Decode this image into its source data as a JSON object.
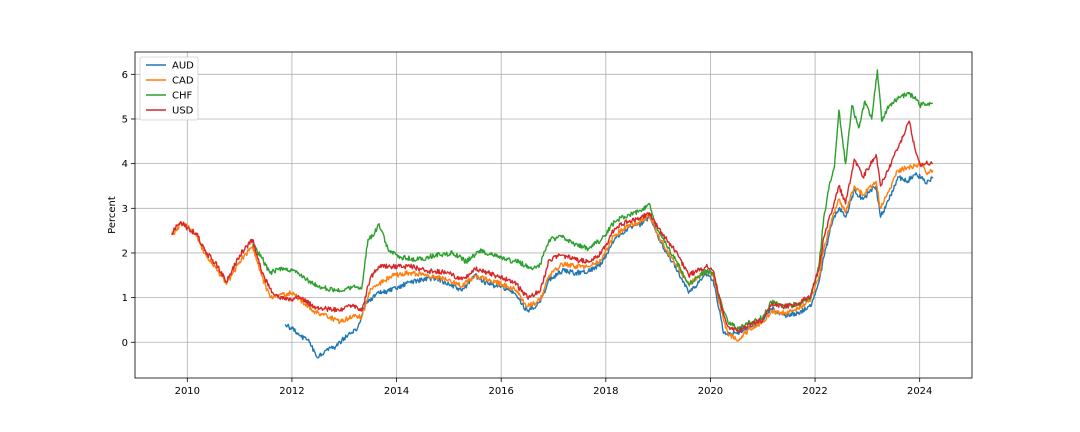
{
  "chart_data": {
    "type": "line",
    "title": "",
    "xlabel": "",
    "ylabel": "Percent",
    "xlim": [
      "2009-01-01",
      "2025-01-01"
    ],
    "ylim": [
      -0.8,
      6.5
    ],
    "grid": true,
    "legend_position": "top-left",
    "xticks": [
      "2010",
      "2012",
      "2014",
      "2016",
      "2018",
      "2020",
      "2022",
      "2024"
    ],
    "yticks": [
      0,
      1,
      2,
      3,
      4,
      5,
      6
    ],
    "series": [
      {
        "name": "AUD",
        "color": "#1f77b4",
        "points": [
          [
            "2011-11-15",
            0.4
          ],
          [
            "2012-01-01",
            0.3
          ],
          [
            "2012-03-01",
            0.15
          ],
          [
            "2012-05-01",
            0.0
          ],
          [
            "2012-07-01",
            -0.35
          ],
          [
            "2012-09-01",
            -0.15
          ],
          [
            "2012-11-01",
            -0.1
          ],
          [
            "2013-01-01",
            0.1
          ],
          [
            "2013-04-01",
            0.3
          ],
          [
            "2013-06-01",
            0.9
          ],
          [
            "2013-09-01",
            1.1
          ],
          [
            "2014-01-01",
            1.2
          ],
          [
            "2014-04-01",
            1.35
          ],
          [
            "2014-07-01",
            1.4
          ],
          [
            "2014-10-01",
            1.45
          ],
          [
            "2015-01-01",
            1.3
          ],
          [
            "2015-04-01",
            1.15
          ],
          [
            "2015-07-01",
            1.5
          ],
          [
            "2015-10-01",
            1.3
          ],
          [
            "2016-01-01",
            1.25
          ],
          [
            "2016-04-01",
            1.1
          ],
          [
            "2016-07-01",
            0.7
          ],
          [
            "2016-10-01",
            0.9
          ],
          [
            "2016-12-01",
            1.4
          ],
          [
            "2017-03-01",
            1.6
          ],
          [
            "2017-06-01",
            1.55
          ],
          [
            "2017-09-01",
            1.6
          ],
          [
            "2017-12-01",
            1.75
          ],
          [
            "2018-03-01",
            2.3
          ],
          [
            "2018-06-01",
            2.55
          ],
          [
            "2018-09-01",
            2.65
          ],
          [
            "2018-11-01",
            2.8
          ],
          [
            "2019-01-01",
            2.35
          ],
          [
            "2019-03-01",
            2.0
          ],
          [
            "2019-05-01",
            1.7
          ],
          [
            "2019-08-01",
            1.1
          ],
          [
            "2019-10-01",
            1.3
          ],
          [
            "2019-12-01",
            1.55
          ],
          [
            "2020-01-20",
            1.4
          ],
          [
            "2020-03-15",
            0.5
          ],
          [
            "2020-04-01",
            0.2
          ],
          [
            "2020-07-01",
            0.2
          ],
          [
            "2020-10-01",
            0.35
          ],
          [
            "2021-01-01",
            0.5
          ],
          [
            "2021-03-01",
            0.75
          ],
          [
            "2021-06-01",
            0.6
          ],
          [
            "2021-09-01",
            0.65
          ],
          [
            "2021-12-01",
            0.8
          ],
          [
            "2022-02-01",
            1.4
          ],
          [
            "2022-03-01",
            1.9
          ],
          [
            "2022-05-01",
            2.7
          ],
          [
            "2022-06-15",
            3.0
          ],
          [
            "2022-08-01",
            2.8
          ],
          [
            "2022-10-01",
            3.4
          ],
          [
            "2022-12-01",
            3.2
          ],
          [
            "2023-03-01",
            3.5
          ],
          [
            "2023-04-01",
            2.8
          ],
          [
            "2023-06-01",
            3.2
          ],
          [
            "2023-08-01",
            3.7
          ],
          [
            "2023-10-01",
            3.6
          ],
          [
            "2023-12-01",
            3.75
          ],
          [
            "2024-01-15",
            3.7
          ],
          [
            "2024-02-15",
            3.55
          ],
          [
            "2024-04-01",
            3.7
          ]
        ]
      },
      {
        "name": "CAD",
        "color": "#ff7f0e",
        "points": [
          [
            "2009-09-15",
            2.4
          ],
          [
            "2009-11-15",
            2.65
          ],
          [
            "2010-01-01",
            2.6
          ],
          [
            "2010-03-01",
            2.4
          ],
          [
            "2010-05-01",
            2.0
          ],
          [
            "2010-08-01",
            1.6
          ],
          [
            "2010-10-01",
            1.3
          ],
          [
            "2011-01-01",
            1.8
          ],
          [
            "2011-04-01",
            2.15
          ],
          [
            "2011-06-01",
            1.5
          ],
          [
            "2011-08-01",
            1.0
          ],
          [
            "2011-10-01",
            1.05
          ],
          [
            "2012-01-01",
            1.1
          ],
          [
            "2012-03-01",
            0.95
          ],
          [
            "2012-06-01",
            0.7
          ],
          [
            "2012-09-01",
            0.6
          ],
          [
            "2012-12-01",
            0.45
          ],
          [
            "2013-03-01",
            0.6
          ],
          [
            "2013-05-01",
            0.55
          ],
          [
            "2013-07-01",
            1.2
          ],
          [
            "2013-09-01",
            1.3
          ],
          [
            "2013-12-01",
            1.5
          ],
          [
            "2014-04-01",
            1.55
          ],
          [
            "2014-08-01",
            1.5
          ],
          [
            "2015-01-01",
            1.4
          ],
          [
            "2015-04-01",
            1.25
          ],
          [
            "2015-07-01",
            1.5
          ],
          [
            "2015-10-01",
            1.4
          ],
          [
            "2016-01-01",
            1.3
          ],
          [
            "2016-04-01",
            1.2
          ],
          [
            "2016-07-01",
            0.8
          ],
          [
            "2016-10-01",
            0.95
          ],
          [
            "2016-12-01",
            1.5
          ],
          [
            "2017-03-01",
            1.75
          ],
          [
            "2017-06-01",
            1.7
          ],
          [
            "2017-09-01",
            1.7
          ],
          [
            "2017-12-01",
            1.85
          ],
          [
            "2018-03-01",
            2.4
          ],
          [
            "2018-06-01",
            2.6
          ],
          [
            "2018-09-01",
            2.7
          ],
          [
            "2018-11-01",
            2.85
          ],
          [
            "2019-01-01",
            2.4
          ],
          [
            "2019-03-01",
            2.05
          ],
          [
            "2019-05-01",
            1.75
          ],
          [
            "2019-08-01",
            1.3
          ],
          [
            "2019-10-01",
            1.45
          ],
          [
            "2019-12-01",
            1.6
          ],
          [
            "2020-01-20",
            1.5
          ],
          [
            "2020-03-15",
            0.7
          ],
          [
            "2020-05-01",
            0.2
          ],
          [
            "2020-07-15",
            0.05
          ],
          [
            "2020-10-01",
            0.3
          ],
          [
            "2021-01-01",
            0.45
          ],
          [
            "2021-03-01",
            0.7
          ],
          [
            "2021-06-01",
            0.65
          ],
          [
            "2021-09-01",
            0.75
          ],
          [
            "2021-12-01",
            0.95
          ],
          [
            "2022-02-01",
            1.5
          ],
          [
            "2022-03-01",
            2.1
          ],
          [
            "2022-05-01",
            2.8
          ],
          [
            "2022-06-15",
            3.2
          ],
          [
            "2022-08-01",
            2.9
          ],
          [
            "2022-10-01",
            3.5
          ],
          [
            "2022-12-01",
            3.3
          ],
          [
            "2023-03-01",
            3.6
          ],
          [
            "2023-04-01",
            3.0
          ],
          [
            "2023-06-01",
            3.4
          ],
          [
            "2023-08-01",
            3.85
          ],
          [
            "2023-10-01",
            3.9
          ],
          [
            "2023-12-01",
            3.95
          ],
          [
            "2024-01-15",
            4.0
          ],
          [
            "2024-02-15",
            3.8
          ],
          [
            "2024-04-01",
            3.85
          ]
        ]
      },
      {
        "name": "CHF",
        "color": "#2ca02c",
        "points": [
          [
            "2011-04-01",
            2.2
          ],
          [
            "2011-06-01",
            1.9
          ],
          [
            "2011-08-01",
            1.55
          ],
          [
            "2011-10-01",
            1.65
          ],
          [
            "2012-01-01",
            1.6
          ],
          [
            "2012-03-01",
            1.5
          ],
          [
            "2012-06-01",
            1.3
          ],
          [
            "2012-09-01",
            1.2
          ],
          [
            "2012-12-01",
            1.15
          ],
          [
            "2013-03-01",
            1.25
          ],
          [
            "2013-05-01",
            1.2
          ],
          [
            "2013-06-15",
            2.3
          ],
          [
            "2013-08-01",
            2.45
          ],
          [
            "2013-09-01",
            2.65
          ],
          [
            "2013-11-01",
            2.1
          ],
          [
            "2014-02-01",
            1.9
          ],
          [
            "2014-06-01",
            1.85
          ],
          [
            "2014-10-01",
            1.95
          ],
          [
            "2015-02-01",
            2.0
          ],
          [
            "2015-05-01",
            1.8
          ],
          [
            "2015-08-01",
            2.05
          ],
          [
            "2015-11-01",
            1.95
          ],
          [
            "2016-02-01",
            1.85
          ],
          [
            "2016-05-01",
            1.8
          ],
          [
            "2016-08-01",
            1.65
          ],
          [
            "2016-10-01",
            1.75
          ],
          [
            "2016-12-01",
            2.3
          ],
          [
            "2017-03-01",
            2.35
          ],
          [
            "2017-06-01",
            2.2
          ],
          [
            "2017-09-01",
            2.1
          ],
          [
            "2017-12-01",
            2.3
          ],
          [
            "2018-03-01",
            2.7
          ],
          [
            "2018-06-01",
            2.85
          ],
          [
            "2018-09-01",
            2.95
          ],
          [
            "2018-11-01",
            3.1
          ],
          [
            "2019-01-01",
            2.5
          ],
          [
            "2019-03-01",
            2.15
          ],
          [
            "2019-05-01",
            1.85
          ],
          [
            "2019-08-01",
            1.3
          ],
          [
            "2019-10-01",
            1.45
          ],
          [
            "2019-12-01",
            1.6
          ],
          [
            "2020-01-20",
            1.55
          ],
          [
            "2020-03-15",
            0.9
          ],
          [
            "2020-05-01",
            0.45
          ],
          [
            "2020-07-15",
            0.3
          ],
          [
            "2020-10-01",
            0.45
          ],
          [
            "2021-01-01",
            0.55
          ],
          [
            "2021-03-01",
            0.9
          ],
          [
            "2021-06-01",
            0.8
          ],
          [
            "2021-09-01",
            0.85
          ],
          [
            "2021-12-01",
            1.0
          ],
          [
            "2022-02-01",
            1.8
          ],
          [
            "2022-03-01",
            2.8
          ],
          [
            "2022-04-15",
            3.6
          ],
          [
            "2022-05-15",
            3.95
          ],
          [
            "2022-06-15",
            5.2
          ],
          [
            "2022-08-01",
            4.0
          ],
          [
            "2022-09-15",
            5.3
          ],
          [
            "2022-11-01",
            4.8
          ],
          [
            "2022-12-15",
            5.4
          ],
          [
            "2023-02-01",
            5.0
          ],
          [
            "2023-03-10",
            6.1
          ],
          [
            "2023-04-10",
            4.95
          ],
          [
            "2023-06-01",
            5.3
          ],
          [
            "2023-08-01",
            5.45
          ],
          [
            "2023-10-01",
            5.55
          ],
          [
            "2023-12-01",
            5.5
          ],
          [
            "2024-01-01",
            5.3
          ],
          [
            "2024-02-01",
            5.35
          ],
          [
            "2024-04-01",
            5.35
          ]
        ]
      },
      {
        "name": "USD",
        "color": "#d62728",
        "points": [
          [
            "2009-09-15",
            2.45
          ],
          [
            "2009-11-15",
            2.7
          ],
          [
            "2010-01-01",
            2.55
          ],
          [
            "2010-03-01",
            2.45
          ],
          [
            "2010-05-01",
            2.05
          ],
          [
            "2010-08-01",
            1.7
          ],
          [
            "2010-10-01",
            1.35
          ],
          [
            "2011-01-01",
            1.95
          ],
          [
            "2011-04-01",
            2.3
          ],
          [
            "2011-06-01",
            1.6
          ],
          [
            "2011-08-01",
            1.2
          ],
          [
            "2011-10-01",
            1.0
          ],
          [
            "2012-01-01",
            0.95
          ],
          [
            "2012-03-01",
            1.0
          ],
          [
            "2012-06-01",
            0.8
          ],
          [
            "2012-09-01",
            0.75
          ],
          [
            "2012-12-01",
            0.7
          ],
          [
            "2013-03-01",
            0.85
          ],
          [
            "2013-05-01",
            0.7
          ],
          [
            "2013-07-01",
            1.45
          ],
          [
            "2013-09-01",
            1.7
          ],
          [
            "2013-12-01",
            1.7
          ],
          [
            "2014-04-01",
            1.7
          ],
          [
            "2014-08-01",
            1.6
          ],
          [
            "2015-01-01",
            1.55
          ],
          [
            "2015-04-01",
            1.4
          ],
          [
            "2015-07-01",
            1.65
          ],
          [
            "2015-10-01",
            1.55
          ],
          [
            "2016-01-01",
            1.45
          ],
          [
            "2016-04-01",
            1.35
          ],
          [
            "2016-07-01",
            1.0
          ],
          [
            "2016-10-01",
            1.15
          ],
          [
            "2016-12-01",
            1.85
          ],
          [
            "2017-03-01",
            1.95
          ],
          [
            "2017-06-01",
            1.85
          ],
          [
            "2017-09-01",
            1.8
          ],
          [
            "2017-12-01",
            2.0
          ],
          [
            "2018-03-01",
            2.55
          ],
          [
            "2018-06-01",
            2.7
          ],
          [
            "2018-09-01",
            2.8
          ],
          [
            "2018-11-01",
            2.9
          ],
          [
            "2019-01-01",
            2.55
          ],
          [
            "2019-03-01",
            2.3
          ],
          [
            "2019-05-01",
            2.05
          ],
          [
            "2019-08-01",
            1.5
          ],
          [
            "2019-10-01",
            1.6
          ],
          [
            "2019-12-01",
            1.7
          ],
          [
            "2020-01-20",
            1.6
          ],
          [
            "2020-03-15",
            0.8
          ],
          [
            "2020-05-01",
            0.35
          ],
          [
            "2020-07-15",
            0.25
          ],
          [
            "2020-10-01",
            0.4
          ],
          [
            "2021-01-01",
            0.5
          ],
          [
            "2021-03-01",
            0.85
          ],
          [
            "2021-06-01",
            0.8
          ],
          [
            "2021-09-01",
            0.85
          ],
          [
            "2021-12-01",
            1.05
          ],
          [
            "2022-02-01",
            1.7
          ],
          [
            "2022-03-01",
            2.35
          ],
          [
            "2022-05-01",
            3.0
          ],
          [
            "2022-06-15",
            3.5
          ],
          [
            "2022-08-01",
            3.1
          ],
          [
            "2022-10-01",
            4.1
          ],
          [
            "2022-12-01",
            3.7
          ],
          [
            "2023-03-01",
            4.2
          ],
          [
            "2023-04-01",
            3.5
          ],
          [
            "2023-06-01",
            3.9
          ],
          [
            "2023-08-01",
            4.35
          ],
          [
            "2023-10-20",
            4.95
          ],
          [
            "2023-12-01",
            4.3
          ],
          [
            "2024-01-15",
            3.95
          ],
          [
            "2024-02-15",
            4.0
          ],
          [
            "2024-04-01",
            4.0
          ]
        ]
      }
    ]
  }
}
